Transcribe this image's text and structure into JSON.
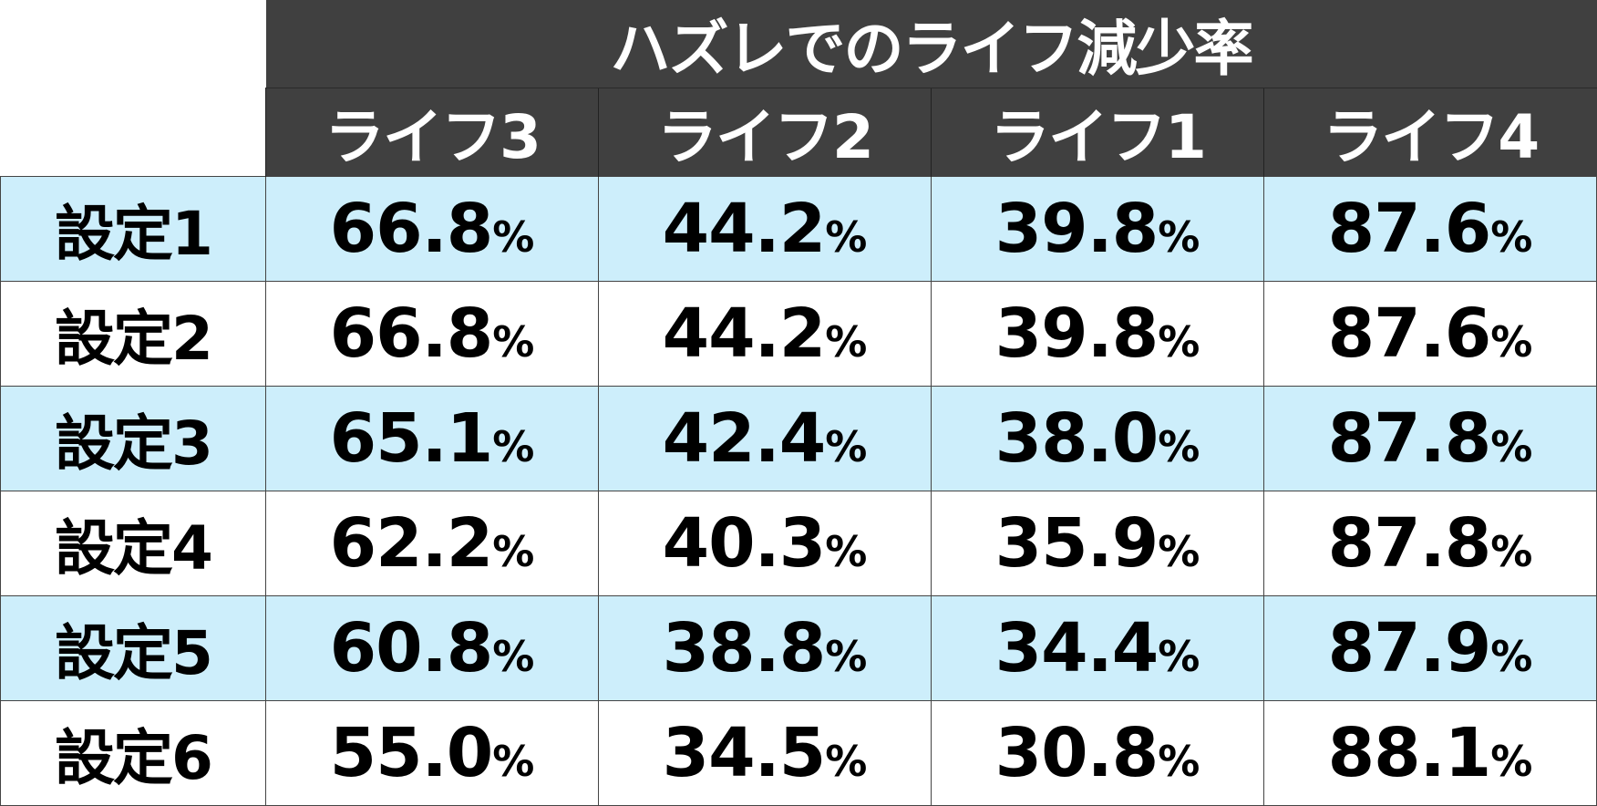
{
  "chart_data": {
    "type": "table",
    "title": "ハズレでのライフ減少率",
    "columns": [
      "ライフ3",
      "ライフ2",
      "ライフ1",
      "ライフ4"
    ],
    "unit": "%",
    "rows": [
      {
        "label": "設定1",
        "values": [
          "66.8",
          "44.2",
          "39.8",
          "87.6"
        ]
      },
      {
        "label": "設定2",
        "values": [
          "66.8",
          "44.2",
          "39.8",
          "87.6"
        ]
      },
      {
        "label": "設定3",
        "values": [
          "65.1",
          "42.4",
          "38.0",
          "87.8"
        ]
      },
      {
        "label": "設定4",
        "values": [
          "62.2",
          "40.3",
          "35.9",
          "87.8"
        ]
      },
      {
        "label": "設定5",
        "values": [
          "60.8",
          "38.8",
          "34.4",
          "87.9"
        ]
      },
      {
        "label": "設定6",
        "values": [
          "55.0",
          "34.5",
          "30.8",
          "88.1"
        ]
      }
    ]
  },
  "colors": {
    "header_bg": "#404040",
    "header_text": "#ffffff",
    "row_alt_bg": "#cdeefb",
    "row_plain_bg": "#ffffff",
    "cell_text": "#000000"
  }
}
